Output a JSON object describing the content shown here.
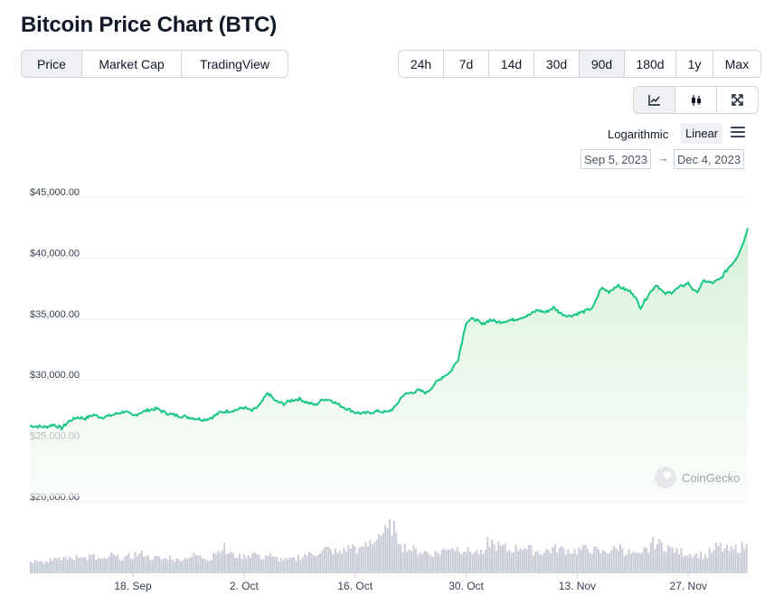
{
  "title": "Bitcoin Price Chart (BTC)",
  "views": [
    "Price",
    "Market Cap",
    "TradingView"
  ],
  "active_view": "Price",
  "periods": [
    "24h",
    "7d",
    "14d",
    "30d",
    "90d",
    "180d",
    "1y",
    "Max"
  ],
  "active_period": "90d",
  "chart_modes": [
    "line-chart-icon",
    "candlestick-icon",
    "expand-icon"
  ],
  "active_chart_mode": "line-chart-icon",
  "scale": {
    "log_label": "Logarithmic",
    "linear_label": "Linear",
    "active": "Linear"
  },
  "date_range": {
    "from": "Sep 5, 2023",
    "to": "Dec 4, 2023",
    "arrow": "→"
  },
  "watermark": "CoinGecko",
  "colors": {
    "line": "#16c784",
    "fill_top": "#d3f0d5",
    "grid": "#eeeeee",
    "volume": "#c9ccd6"
  },
  "chart_data": {
    "type": "area",
    "title": "Bitcoin Price Chart (BTC)",
    "y_ticks": [
      "$45,000.00",
      "$40,000.00",
      "$35,000.00",
      "$30,000.00",
      "$25,000.00",
      "$20,000.00"
    ],
    "y_tick_values": [
      45000,
      40000,
      35000,
      30000,
      25000,
      20000
    ],
    "ylim": [
      20000,
      45000
    ],
    "x_ticks": [
      "18. Sep",
      "2. Oct",
      "16. Oct",
      "30. Oct",
      "13. Nov",
      "27. Nov"
    ],
    "x_tick_days": [
      13,
      27,
      41,
      55,
      69,
      83
    ],
    "x_range_days": [
      0,
      90
    ],
    "grid": true,
    "series": [
      {
        "values": [
          [
            0,
            25800
          ],
          [
            1,
            25750
          ],
          [
            2,
            25700
          ],
          [
            3,
            25900
          ],
          [
            4,
            25600
          ],
          [
            5,
            26200
          ],
          [
            6,
            26500
          ],
          [
            7,
            26400
          ],
          [
            8,
            26700
          ],
          [
            9,
            26500
          ],
          [
            10,
            26600
          ],
          [
            11,
            26800
          ],
          [
            12,
            27000
          ],
          [
            13,
            26600
          ],
          [
            14,
            26900
          ],
          [
            15,
            27100
          ],
          [
            16,
            27200
          ],
          [
            17,
            26900
          ],
          [
            18,
            26700
          ],
          [
            19,
            26600
          ],
          [
            20,
            26500
          ],
          [
            21,
            26400
          ],
          [
            22,
            26300
          ],
          [
            23,
            26500
          ],
          [
            24,
            26900
          ],
          [
            25,
            27000
          ],
          [
            26,
            27100
          ],
          [
            27,
            27300
          ],
          [
            28,
            27000
          ],
          [
            29,
            27500
          ],
          [
            30,
            28500
          ],
          [
            31,
            27800
          ],
          [
            32,
            27600
          ],
          [
            33,
            27900
          ],
          [
            34,
            28000
          ],
          [
            35,
            27700
          ],
          [
            36,
            27500
          ],
          [
            37,
            28000
          ],
          [
            38,
            27900
          ],
          [
            39,
            27500
          ],
          [
            40,
            27200
          ],
          [
            41,
            26900
          ],
          [
            42,
            26800
          ],
          [
            43,
            26900
          ],
          [
            44,
            27000
          ],
          [
            45,
            26900
          ],
          [
            46,
            27300
          ],
          [
            47,
            28300
          ],
          [
            48,
            28500
          ],
          [
            49,
            28700
          ],
          [
            50,
            28500
          ],
          [
            51,
            29200
          ],
          [
            52,
            29800
          ],
          [
            53,
            30200
          ],
          [
            54,
            31300
          ],
          [
            55,
            34300
          ],
          [
            56,
            34600
          ],
          [
            57,
            34100
          ],
          [
            58,
            34500
          ],
          [
            59,
            34300
          ],
          [
            60,
            34400
          ],
          [
            61,
            34500
          ],
          [
            62,
            34700
          ],
          [
            63,
            34900
          ],
          [
            64,
            35300
          ],
          [
            65,
            35100
          ],
          [
            66,
            35500
          ],
          [
            67,
            35000
          ],
          [
            68,
            34800
          ],
          [
            69,
            35000
          ],
          [
            70,
            35200
          ],
          [
            71,
            35500
          ],
          [
            72,
            37100
          ],
          [
            73,
            36800
          ],
          [
            74,
            37300
          ],
          [
            75,
            37000
          ],
          [
            76,
            36700
          ],
          [
            77,
            35500
          ],
          [
            78,
            36600
          ],
          [
            79,
            37400
          ],
          [
            80,
            36600
          ],
          [
            81,
            36800
          ],
          [
            82,
            37200
          ],
          [
            83,
            37500
          ],
          [
            84,
            36700
          ],
          [
            85,
            37700
          ],
          [
            86,
            37500
          ],
          [
            87,
            37800
          ],
          [
            88,
            38700
          ],
          [
            89,
            39500
          ],
          [
            90,
            40900
          ],
          [
            90.5,
            42000
          ]
        ]
      }
    ],
    "volume": [
      14,
      16,
      13,
      17,
      15,
      18,
      16,
      21,
      17,
      19,
      16,
      15,
      20,
      18,
      17,
      19,
      21,
      22,
      18,
      17,
      16,
      18,
      15,
      17,
      19,
      20,
      18,
      17,
      24,
      29,
      23,
      20,
      19,
      21,
      22,
      18,
      20,
      17,
      16,
      15,
      16,
      19,
      21,
      22,
      24,
      27,
      25,
      23,
      28,
      30,
      26,
      31,
      36,
      44,
      46,
      52,
      38,
      30,
      27,
      25,
      24,
      22,
      23,
      26,
      30,
      28,
      27,
      25,
      24,
      22,
      35,
      31,
      29,
      26,
      28,
      30,
      27,
      25,
      24,
      26,
      28,
      27,
      26,
      25,
      27,
      28,
      26,
      24,
      25,
      27,
      30,
      24,
      22,
      20,
      26,
      34,
      33,
      30,
      27,
      24,
      23,
      22,
      21,
      20,
      24,
      30,
      27,
      26,
      28,
      30
    ]
  }
}
